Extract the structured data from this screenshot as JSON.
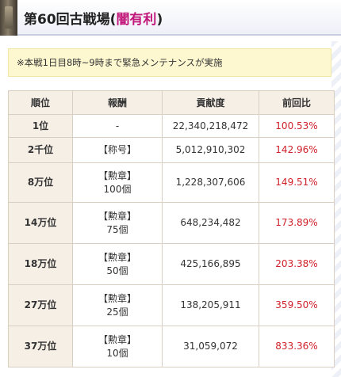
{
  "title": {
    "prefix": "第60回古戦場(",
    "accent": "闇有利",
    "suffix": ")"
  },
  "notice": "※本戦1日目8時~9時まで緊急メンテナンスが実施",
  "table": {
    "headers": [
      "順位",
      "報酬",
      "貢献度",
      "前回比"
    ],
    "rows": [
      {
        "rank": "1位",
        "reward_line1": "-",
        "reward_line2": "",
        "contribution": "22,340,218,472",
        "ratio": "100.53%"
      },
      {
        "rank": "2千位",
        "reward_line1": "【称号】",
        "reward_line2": "",
        "contribution": "5,012,910,302",
        "ratio": "142.96%"
      },
      {
        "rank": "8万位",
        "reward_line1": "【勲章】",
        "reward_line2": "100個",
        "contribution": "1,228,307,606",
        "ratio": "149.51%"
      },
      {
        "rank": "14万位",
        "reward_line1": "【勲章】",
        "reward_line2": "75個",
        "contribution": "648,234,482",
        "ratio": "173.89%"
      },
      {
        "rank": "18万位",
        "reward_line1": "【勲章】",
        "reward_line2": "50個",
        "contribution": "425,166,895",
        "ratio": "203.38%"
      },
      {
        "rank": "27万位",
        "reward_line1": "【勲章】",
        "reward_line2": "25個",
        "contribution": "138,205,911",
        "ratio": "359.50%"
      },
      {
        "rank": "37万位",
        "reward_line1": "【勲章】",
        "reward_line2": "10個",
        "contribution": "31,059,072",
        "ratio": "833.36%"
      }
    ]
  },
  "colors": {
    "accent": "#c2177a",
    "ratio": "#d0202a",
    "header_bg": "#f6efe6",
    "notice_bg": "#fdf8d0"
  }
}
